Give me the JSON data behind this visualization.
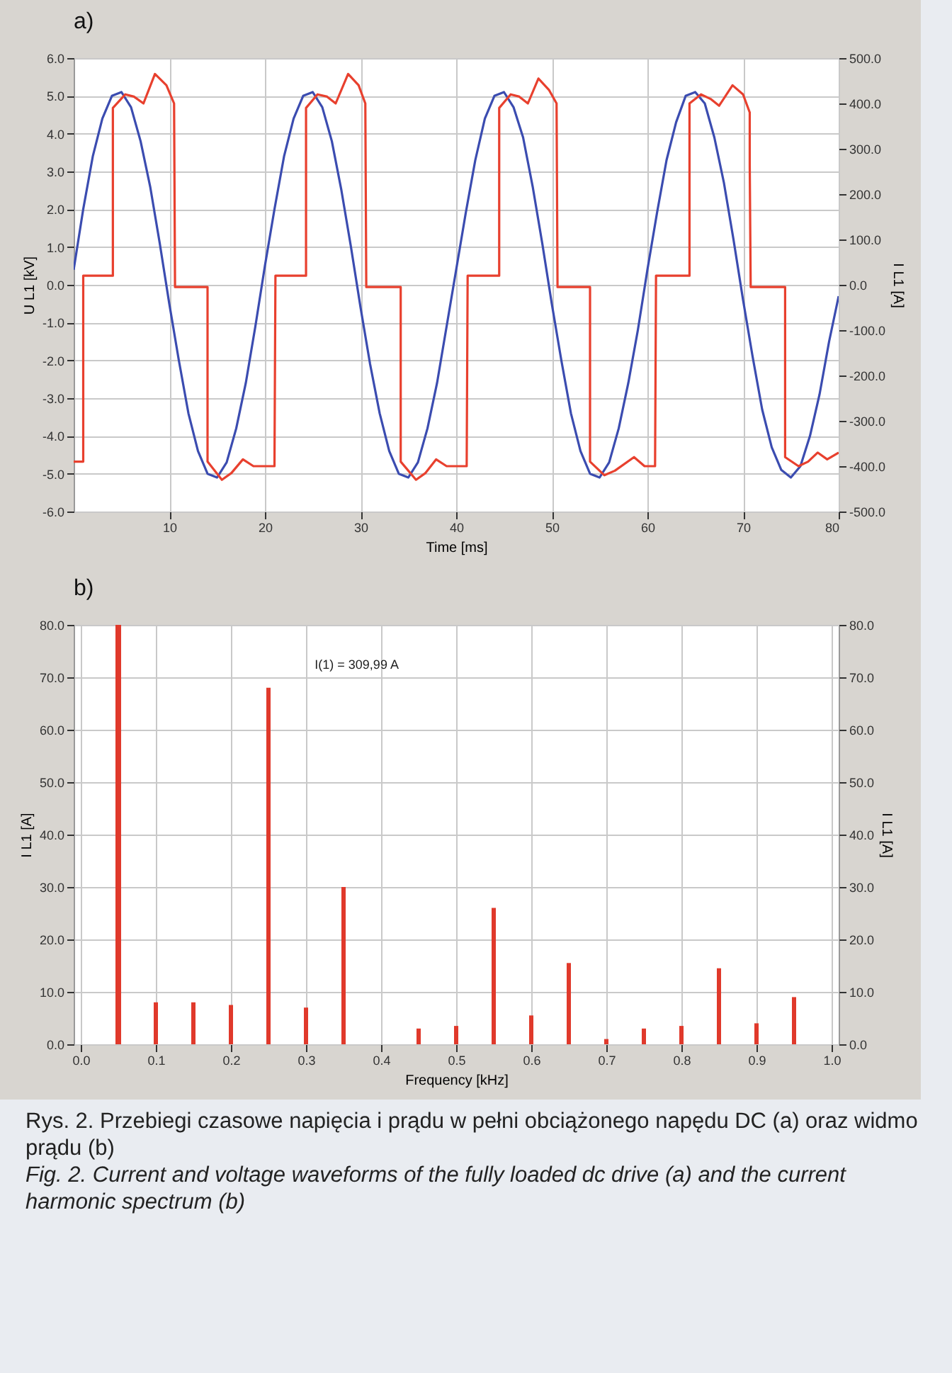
{
  "chart_data": [
    {
      "type": "line",
      "title": "a)",
      "xlabel": "Time [ms]",
      "ylabel": "U L1 [kV]",
      "y2label": "I L1 [A]",
      "xlim": [
        0,
        80
      ],
      "xticks": [
        10,
        20,
        30,
        40,
        50,
        60,
        70,
        80
      ],
      "ylim": [
        -6,
        6
      ],
      "yticks": [
        {
          "value": -6,
          "label": "-6.0"
        },
        {
          "value": -5,
          "label": "-5.0"
        },
        {
          "value": -4,
          "label": "-4.0"
        },
        {
          "value": -3,
          "label": "-3.0"
        },
        {
          "value": -2,
          "label": "-2.0"
        },
        {
          "value": -1,
          "label": "-1.0"
        },
        {
          "value": 0,
          "label": "0.0"
        },
        {
          "value": 1,
          "label": "1.0"
        },
        {
          "value": 2,
          "label": "2.0"
        },
        {
          "value": 3,
          "label": "3.0"
        },
        {
          "value": 4,
          "label": "4.0"
        },
        {
          "value": 5,
          "label": "5.0"
        },
        {
          "value": 6,
          "label": "6.0"
        }
      ],
      "y2lim": [
        -500,
        500
      ],
      "y2ticks": [
        {
          "value": -500,
          "label": "-500.0"
        },
        {
          "value": -400,
          "label": "-400.0"
        },
        {
          "value": -300,
          "label": "-300.0"
        },
        {
          "value": -200,
          "label": "-200.0"
        },
        {
          "value": -100,
          "label": "-100.0"
        },
        {
          "value": 0,
          "label": "0.0"
        },
        {
          "value": 100,
          "label": "100.0"
        },
        {
          "value": 200,
          "label": "200.0"
        },
        {
          "value": 300,
          "label": "300.0"
        },
        {
          "value": 400,
          "label": "400.0"
        },
        {
          "value": 500,
          "label": "500.0"
        }
      ],
      "grid": true,
      "marker": "none",
      "line_style": "solid",
      "series": [
        {
          "color": "#3b4cb0",
          "x": [
            0,
            1,
            2,
            3,
            4,
            5,
            6,
            7,
            8,
            9,
            10,
            11,
            12,
            13,
            14,
            15,
            16,
            17,
            18,
            19,
            20,
            21,
            22,
            23,
            24,
            25,
            26,
            27,
            28,
            29,
            30,
            31,
            32,
            33,
            34,
            35,
            36,
            37,
            38,
            39,
            40,
            41,
            42,
            43,
            44,
            45,
            46,
            47,
            48,
            49,
            50,
            51,
            52,
            53,
            54,
            55,
            56,
            57,
            58,
            59,
            60,
            61,
            62,
            63,
            64,
            65,
            66,
            67,
            68,
            69,
            70,
            71,
            72,
            73,
            74,
            75,
            76,
            77,
            78,
            79,
            80
          ],
          "values": [
            0.4,
            2.0,
            3.4,
            4.4,
            5.0,
            5.1,
            4.7,
            3.8,
            2.6,
            1.1,
            -0.5,
            -2.0,
            -3.4,
            -4.4,
            -5.0,
            -5.1,
            -4.7,
            -3.8,
            -2.6,
            -1.1,
            0.5,
            2.0,
            3.4,
            4.4,
            5.0,
            5.1,
            4.7,
            3.8,
            2.5,
            1.0,
            -0.6,
            -2.1,
            -3.4,
            -4.4,
            -5.0,
            -5.1,
            -4.7,
            -3.8,
            -2.6,
            -1.1,
            0.4,
            1.9,
            3.3,
            4.4,
            5.0,
            5.1,
            4.7,
            3.9,
            2.6,
            1.1,
            -0.5,
            -2.0,
            -3.4,
            -4.4,
            -5.0,
            -5.1,
            -4.7,
            -3.8,
            -2.6,
            -1.2,
            0.4,
            1.9,
            3.3,
            4.3,
            5.0,
            5.1,
            4.8,
            3.9,
            2.7,
            1.2,
            -0.4,
            -1.9,
            -3.3,
            -4.3,
            -4.9,
            -5.1,
            -4.8,
            -4.0,
            -2.9,
            -1.5,
            -0.3
          ]
        },
        {
          "color": "#e8402e",
          "axis": "y2",
          "x": [
            0,
            1.0,
            1.0,
            4.1,
            4.1,
            5.4,
            6.3,
            7.3,
            8.5,
            9.7,
            10.5,
            10.6,
            14.0,
            14.0,
            15.5,
            16.5,
            17.7,
            18.8,
            21.0,
            21.1,
            24.3,
            24.3,
            25.5,
            26.5,
            27.4,
            28.7,
            29.8,
            30.5,
            30.6,
            34.2,
            34.2,
            35.8,
            36.8,
            37.9,
            39.0,
            41.1,
            41.2,
            44.5,
            44.5,
            45.7,
            46.6,
            47.5,
            48.6,
            49.7,
            50.5,
            50.6,
            54.0,
            54.0,
            55.5,
            56.6,
            58.6,
            59.7,
            60.8,
            60.9,
            64.4,
            64.4,
            65.6,
            66.6,
            67.5,
            68.9,
            70.0,
            70.7,
            70.7,
            70.8,
            74.4,
            74.4,
            75.8,
            76.8,
            77.8,
            78.8,
            80
          ],
          "values": [
            -390,
            -390,
            20,
            20,
            390,
            420,
            415,
            400,
            465,
            440,
            400,
            -5,
            -5,
            -390,
            -430,
            -415,
            -385,
            -400,
            -400,
            20,
            20,
            390,
            420,
            415,
            400,
            465,
            440,
            400,
            -5,
            -5,
            -390,
            -430,
            -415,
            -385,
            -400,
            -400,
            20,
            20,
            390,
            420,
            415,
            400,
            455,
            430,
            400,
            -5,
            -5,
            -390,
            -420,
            -410,
            -380,
            -400,
            -400,
            20,
            20,
            400,
            420,
            410,
            395,
            440,
            420,
            380,
            262,
            -5,
            -5,
            -380,
            -400,
            -390,
            -370,
            -385,
            -370
          ]
        }
      ]
    },
    {
      "type": "bar",
      "title": "b)",
      "xlabel": "Frequency [kHz]",
      "ylabel": "I L1 [A]",
      "y2label": "I L1 [A]",
      "xlim": [
        0,
        1
      ],
      "xticks": [
        {
          "value": 0,
          "label": "0.0"
        },
        {
          "value": 0.1,
          "label": "0.1"
        },
        {
          "value": 0.2,
          "label": "0.2"
        },
        {
          "value": 0.3,
          "label": "0.3"
        },
        {
          "value": 0.4,
          "label": "0.4"
        },
        {
          "value": 0.5,
          "label": "0.5"
        },
        {
          "value": 0.6,
          "label": "0.6"
        },
        {
          "value": 0.7,
          "label": "0.7"
        },
        {
          "value": 0.8,
          "label": "0.8"
        },
        {
          "value": 0.9,
          "label": "0.9"
        },
        {
          "value": 1,
          "label": "1.0"
        }
      ],
      "ylim": [
        0,
        80
      ],
      "yticks": [
        {
          "value": 0,
          "label": "0.0"
        },
        {
          "value": 10,
          "label": "10.0"
        },
        {
          "value": 20,
          "label": "20.0"
        },
        {
          "value": 30,
          "label": "30.0"
        },
        {
          "value": 40,
          "label": "40.0"
        },
        {
          "value": 50,
          "label": "50.0"
        },
        {
          "value": 60,
          "label": "60.0"
        },
        {
          "value": 70,
          "label": "70.0"
        },
        {
          "value": 80,
          "label": "80.0"
        }
      ],
      "y2lim": [
        0,
        80
      ],
      "y2ticks": [
        {
          "value": 0,
          "label": "0.0"
        },
        {
          "value": 10,
          "label": "10.0"
        },
        {
          "value": 20,
          "label": "20.0"
        },
        {
          "value": 30,
          "label": "30.0"
        },
        {
          "value": 40,
          "label": "40.0"
        },
        {
          "value": 50,
          "label": "50.0"
        },
        {
          "value": 60,
          "label": "60.0"
        },
        {
          "value": 70,
          "label": "70.0"
        },
        {
          "value": 80,
          "label": "80.0"
        }
      ],
      "grid": true,
      "series": [
        {
          "color": "#e0392b",
          "x": [
            0.1,
            0.15,
            0.2,
            0.25,
            0.3,
            0.35,
            0.45,
            0.5,
            0.55,
            0.6,
            0.65,
            0.7,
            0.75,
            0.8,
            0.85,
            0.9,
            0.95
          ],
          "values": [
            8,
            8,
            7.5,
            68,
            7,
            30,
            3,
            3.5,
            26,
            5.5,
            15.5,
            1,
            3,
            3.5,
            14.5,
            4,
            9
          ]
        }
      ],
      "ref_lines": [
        {
          "axis": "x",
          "value": 0.05,
          "color": "#e0392b"
        }
      ],
      "annotations": [
        "I(1) = 309,99 A",
        "Rys. 2. Przebiegi czasowe napięcia i prądu w pełni obciążonego napędu DC (a) oraz widmo prądu (b)",
        "Fig. 2. Current and voltage waveforms of the fully loaded dc drive (a) and the current harmonic spectrum (b)"
      ]
    }
  ]
}
